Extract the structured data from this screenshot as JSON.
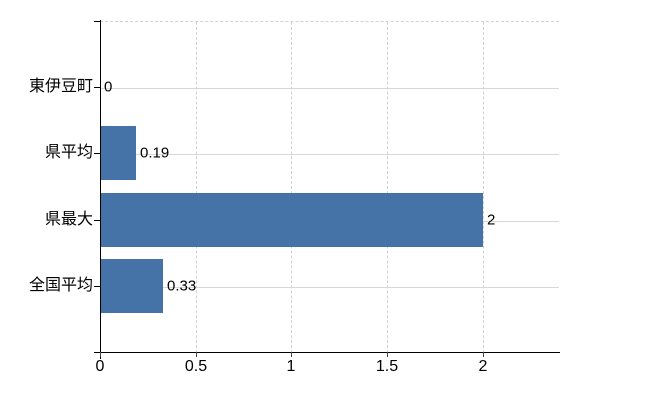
{
  "chart_data": {
    "type": "bar",
    "orientation": "horizontal",
    "categories": [
      "東伊豆町",
      "県平均",
      "県最大",
      "全国平均"
    ],
    "values": [
      0,
      0.19,
      2,
      0.33
    ],
    "value_labels": [
      "0",
      "0.19",
      "2",
      "0.33"
    ],
    "x_ticks": [
      0,
      0.5,
      1,
      1.5,
      2
    ],
    "x_tick_labels": [
      "0",
      "0.5",
      "1",
      "1.5",
      "2"
    ],
    "xlim": [
      0,
      2.4
    ],
    "grid": true,
    "legend": false,
    "colors": {
      "bar": "#4572a7",
      "axis": "#000000",
      "hgrid": "#d2dad2",
      "vgrid": "#cdd1da",
      "top_border": "#d6d0d6",
      "text": "#000000",
      "background": "#ffffff"
    }
  }
}
